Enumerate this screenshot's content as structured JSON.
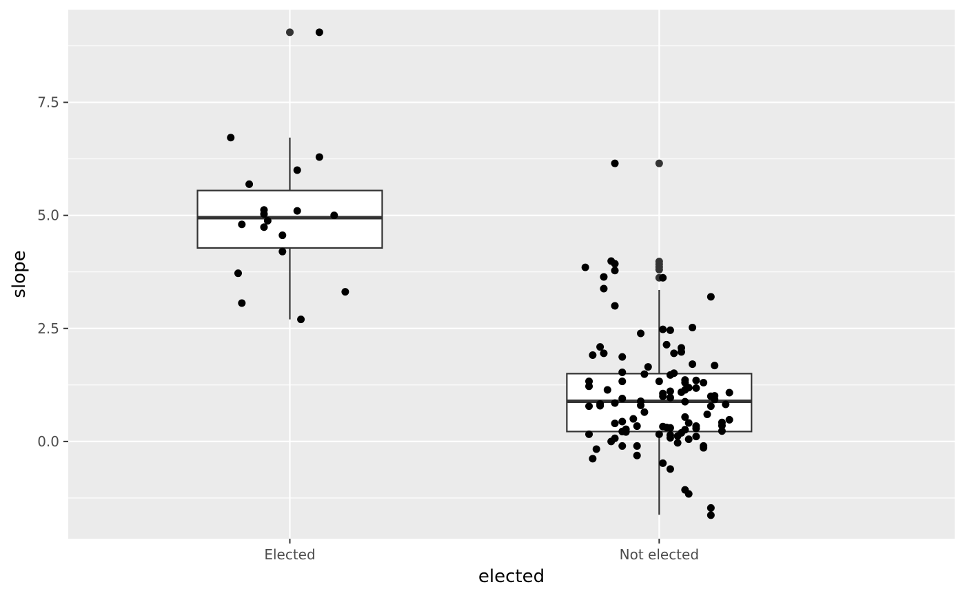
{
  "chart_data": {
    "type": "boxplot",
    "xlabel": "elected",
    "ylabel": "slope",
    "categories": [
      "Elected",
      "Not elected"
    ],
    "ylim": [
      -2.15,
      9.55
    ],
    "yticks": [
      0.0,
      2.5,
      5.0,
      7.5
    ],
    "ytick_labels": [
      "0.0",
      "2.5",
      "5.0",
      "7.5"
    ],
    "grid": true,
    "legend": "none",
    "colors": {
      "panel": "#ebebeb",
      "grid": "#ffffff",
      "box_fill": "#ffffff",
      "box_stroke": "#333333",
      "point": "#000000",
      "outlier": "#333333"
    },
    "boxes": [
      {
        "category": "Elected",
        "whisker_low": 2.7,
        "q1": 4.28,
        "median": 4.95,
        "q3": 5.55,
        "whisker_high": 6.72,
        "outliers": [
          9.05
        ]
      },
      {
        "category": "Not elected",
        "whisker_low": -1.62,
        "q1": 0.22,
        "median": 0.89,
        "q3": 1.5,
        "whisker_high": 3.35,
        "outliers": [
          6.15,
          3.98,
          3.92,
          3.86,
          3.8,
          3.62
        ]
      }
    ],
    "points": [
      {
        "category": "Elected",
        "jitter": 0.08,
        "y": 9.05
      },
      {
        "category": "Elected",
        "jitter": -0.16,
        "y": 6.72
      },
      {
        "category": "Elected",
        "jitter": 0.08,
        "y": 6.29
      },
      {
        "category": "Elected",
        "jitter": 0.02,
        "y": 6.0
      },
      {
        "category": "Elected",
        "jitter": -0.11,
        "y": 5.69
      },
      {
        "category": "Elected",
        "jitter": -0.07,
        "y": 5.12
      },
      {
        "category": "Elected",
        "jitter": -0.07,
        "y": 5.03
      },
      {
        "category": "Elected",
        "jitter": 0.02,
        "y": 5.1
      },
      {
        "category": "Elected",
        "jitter": 0.12,
        "y": 5.0
      },
      {
        "category": "Elected",
        "jitter": -0.06,
        "y": 4.88
      },
      {
        "category": "Elected",
        "jitter": -0.13,
        "y": 4.8
      },
      {
        "category": "Elected",
        "jitter": -0.07,
        "y": 4.74
      },
      {
        "category": "Elected",
        "jitter": -0.02,
        "y": 4.56
      },
      {
        "category": "Elected",
        "jitter": -0.02,
        "y": 4.2
      },
      {
        "category": "Elected",
        "jitter": -0.14,
        "y": 3.72
      },
      {
        "category": "Elected",
        "jitter": 0.15,
        "y": 3.31
      },
      {
        "category": "Elected",
        "jitter": -0.13,
        "y": 3.06
      },
      {
        "category": "Elected",
        "jitter": 0.03,
        "y": 2.7
      },
      {
        "category": "Not elected",
        "jitter": -0.12,
        "y": 6.15
      },
      {
        "category": "Not elected",
        "jitter": -0.13,
        "y": 3.99
      },
      {
        "category": "Not elected",
        "jitter": -0.12,
        "y": 3.93
      },
      {
        "category": "Not elected",
        "jitter": -0.2,
        "y": 3.85
      },
      {
        "category": "Not elected",
        "jitter": -0.12,
        "y": 3.78
      },
      {
        "category": "Not elected",
        "jitter": -0.15,
        "y": 3.64
      },
      {
        "category": "Not elected",
        "jitter": 0.01,
        "y": 3.62
      },
      {
        "category": "Not elected",
        "jitter": -0.15,
        "y": 3.38
      },
      {
        "category": "Not elected",
        "jitter": 0.14,
        "y": 3.2
      },
      {
        "category": "Not elected",
        "jitter": -0.12,
        "y": 3.0
      },
      {
        "category": "Not elected",
        "jitter": 0.09,
        "y": 2.52
      },
      {
        "category": "Not elected",
        "jitter": 0.01,
        "y": 2.48
      },
      {
        "category": "Not elected",
        "jitter": 0.03,
        "y": 2.46
      },
      {
        "category": "Not elected",
        "jitter": -0.05,
        "y": 2.39
      },
      {
        "category": "Not elected",
        "jitter": 0.02,
        "y": 2.14
      },
      {
        "category": "Not elected",
        "jitter": -0.16,
        "y": 2.09
      },
      {
        "category": "Not elected",
        "jitter": 0.06,
        "y": 2.07
      },
      {
        "category": "Not elected",
        "jitter": 0.06,
        "y": 1.98
      },
      {
        "category": "Not elected",
        "jitter": -0.15,
        "y": 1.95
      },
      {
        "category": "Not elected",
        "jitter": 0.04,
        "y": 1.95
      },
      {
        "category": "Not elected",
        "jitter": -0.18,
        "y": 1.91
      },
      {
        "category": "Not elected",
        "jitter": -0.1,
        "y": 1.87
      },
      {
        "category": "Not elected",
        "jitter": 0.09,
        "y": 1.71
      },
      {
        "category": "Not elected",
        "jitter": 0.15,
        "y": 1.68
      },
      {
        "category": "Not elected",
        "jitter": -0.03,
        "y": 1.65
      },
      {
        "category": "Not elected",
        "jitter": -0.1,
        "y": 1.53
      },
      {
        "category": "Not elected",
        "jitter": 0.04,
        "y": 1.51
      },
      {
        "category": "Not elected",
        "jitter": -0.04,
        "y": 1.49
      },
      {
        "category": "Not elected",
        "jitter": 0.03,
        "y": 1.47
      },
      {
        "category": "Not elected",
        "jitter": 0.07,
        "y": 1.36
      },
      {
        "category": "Not elected",
        "jitter": 0.1,
        "y": 1.35
      },
      {
        "category": "Not elected",
        "jitter": -0.19,
        "y": 1.33
      },
      {
        "category": "Not elected",
        "jitter": 0.0,
        "y": 1.33
      },
      {
        "category": "Not elected",
        "jitter": -0.1,
        "y": 1.33
      },
      {
        "category": "Not elected",
        "jitter": 0.12,
        "y": 1.3
      },
      {
        "category": "Not elected",
        "jitter": 0.07,
        "y": 1.3
      },
      {
        "category": "Not elected",
        "jitter": -0.19,
        "y": 1.22
      },
      {
        "category": "Not elected",
        "jitter": 0.08,
        "y": 1.19
      },
      {
        "category": "Not elected",
        "jitter": 0.1,
        "y": 1.18
      },
      {
        "category": "Not elected",
        "jitter": 0.07,
        "y": 1.14
      },
      {
        "category": "Not elected",
        "jitter": -0.14,
        "y": 1.14
      },
      {
        "category": "Not elected",
        "jitter": 0.03,
        "y": 1.11
      },
      {
        "category": "Not elected",
        "jitter": 0.06,
        "y": 1.09
      },
      {
        "category": "Not elected",
        "jitter": 0.19,
        "y": 1.08
      },
      {
        "category": "Not elected",
        "jitter": 0.01,
        "y": 1.06
      },
      {
        "category": "Not elected",
        "jitter": 0.01,
        "y": 1.0
      },
      {
        "category": "Not elected",
        "jitter": 0.15,
        "y": 1.01
      },
      {
        "category": "Not elected",
        "jitter": 0.14,
        "y": 1.0
      },
      {
        "category": "Not elected",
        "jitter": 0.03,
        "y": 0.97
      },
      {
        "category": "Not elected",
        "jitter": -0.1,
        "y": 0.95
      },
      {
        "category": "Not elected",
        "jitter": 0.15,
        "y": 0.93
      },
      {
        "category": "Not elected",
        "jitter": -0.05,
        "y": 0.89
      },
      {
        "category": "Not elected",
        "jitter": 0.07,
        "y": 0.88
      },
      {
        "category": "Not elected",
        "jitter": -0.12,
        "y": 0.85
      },
      {
        "category": "Not elected",
        "jitter": -0.16,
        "y": 0.83
      },
      {
        "category": "Not elected",
        "jitter": 0.18,
        "y": 0.82
      },
      {
        "category": "Not elected",
        "jitter": -0.05,
        "y": 0.8
      },
      {
        "category": "Not elected",
        "jitter": -0.16,
        "y": 0.79
      },
      {
        "category": "Not elected",
        "jitter": 0.14,
        "y": 0.78
      },
      {
        "category": "Not elected",
        "jitter": -0.19,
        "y": 0.78
      },
      {
        "category": "Not elected",
        "jitter": -0.04,
        "y": 0.65
      },
      {
        "category": "Not elected",
        "jitter": 0.13,
        "y": 0.6
      },
      {
        "category": "Not elected",
        "jitter": 0.07,
        "y": 0.54
      },
      {
        "category": "Not elected",
        "jitter": -0.07,
        "y": 0.5
      },
      {
        "category": "Not elected",
        "jitter": 0.19,
        "y": 0.48
      },
      {
        "category": "Not elected",
        "jitter": -0.1,
        "y": 0.44
      },
      {
        "category": "Not elected",
        "jitter": 0.17,
        "y": 0.42
      },
      {
        "category": "Not elected",
        "jitter": 0.08,
        "y": 0.41
      },
      {
        "category": "Not elected",
        "jitter": -0.12,
        "y": 0.4
      },
      {
        "category": "Not elected",
        "jitter": 0.17,
        "y": 0.35
      },
      {
        "category": "Not elected",
        "jitter": 0.1,
        "y": 0.34
      },
      {
        "category": "Not elected",
        "jitter": -0.06,
        "y": 0.34
      },
      {
        "category": "Not elected",
        "jitter": 0.01,
        "y": 0.33
      },
      {
        "category": "Not elected",
        "jitter": 0.02,
        "y": 0.31
      },
      {
        "category": "Not elected",
        "jitter": 0.03,
        "y": 0.3
      },
      {
        "category": "Not elected",
        "jitter": 0.1,
        "y": 0.29
      },
      {
        "category": "Not elected",
        "jitter": -0.09,
        "y": 0.27
      },
      {
        "category": "Not elected",
        "jitter": 0.07,
        "y": 0.26
      },
      {
        "category": "Not elected",
        "jitter": 0.17,
        "y": 0.23
      },
      {
        "category": "Not elected",
        "jitter": -0.1,
        "y": 0.22
      },
      {
        "category": "Not elected",
        "jitter": -0.09,
        "y": 0.21
      },
      {
        "category": "Not elected",
        "jitter": 0.06,
        "y": 0.19
      },
      {
        "category": "Not elected",
        "jitter": -0.19,
        "y": 0.16
      },
      {
        "category": "Not elected",
        "jitter": 0.0,
        "y": 0.16
      },
      {
        "category": "Not elected",
        "jitter": 0.03,
        "y": 0.14
      },
      {
        "category": "Not elected",
        "jitter": 0.05,
        "y": 0.12
      },
      {
        "category": "Not elected",
        "jitter": 0.1,
        "y": 0.11
      },
      {
        "category": "Not elected",
        "jitter": 0.03,
        "y": 0.08
      },
      {
        "category": "Not elected",
        "jitter": -0.12,
        "y": 0.07
      },
      {
        "category": "Not elected",
        "jitter": 0.08,
        "y": 0.05
      },
      {
        "category": "Not elected",
        "jitter": -0.13,
        "y": 0.0
      },
      {
        "category": "Not elected",
        "jitter": 0.05,
        "y": -0.03
      },
      {
        "category": "Not elected",
        "jitter": -0.1,
        "y": -0.1
      },
      {
        "category": "Not elected",
        "jitter": -0.06,
        "y": -0.1
      },
      {
        "category": "Not elected",
        "jitter": 0.12,
        "y": -0.1
      },
      {
        "category": "Not elected",
        "jitter": 0.12,
        "y": -0.14
      },
      {
        "category": "Not elected",
        "jitter": -0.17,
        "y": -0.17
      },
      {
        "category": "Not elected",
        "jitter": -0.06,
        "y": -0.31
      },
      {
        "category": "Not elected",
        "jitter": -0.18,
        "y": -0.38
      },
      {
        "category": "Not elected",
        "jitter": 0.01,
        "y": -0.48
      },
      {
        "category": "Not elected",
        "jitter": 0.03,
        "y": -0.61
      },
      {
        "category": "Not elected",
        "jitter": 0.07,
        "y": -1.07
      },
      {
        "category": "Not elected",
        "jitter": 0.08,
        "y": -1.16
      },
      {
        "category": "Not elected",
        "jitter": 0.14,
        "y": -1.47
      },
      {
        "category": "Not elected",
        "jitter": 0.14,
        "y": -1.63
      }
    ]
  }
}
